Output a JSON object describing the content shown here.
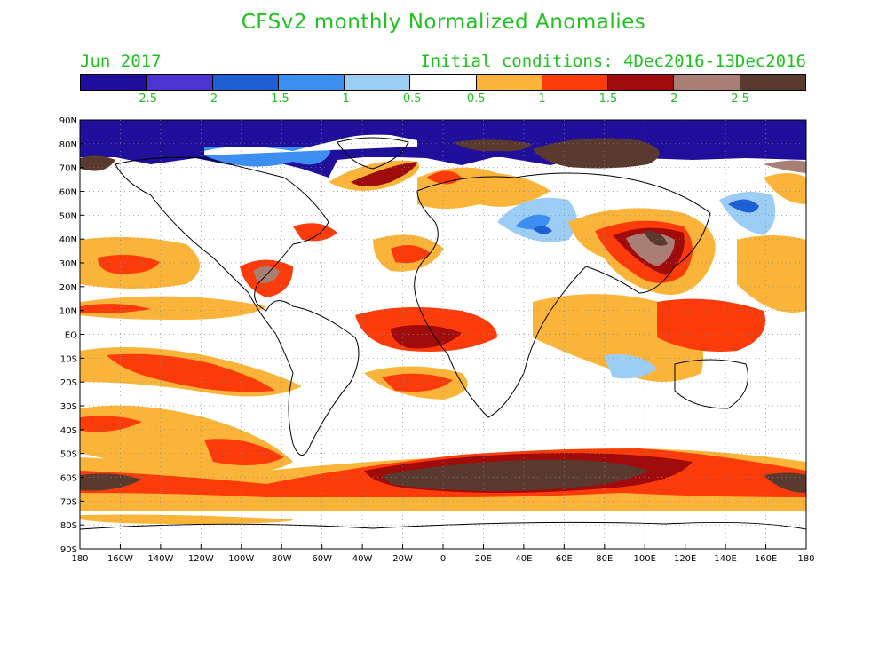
{
  "title": "CFSv2 monthly Normalized Anomalies",
  "subtitle_left": "Jun 2017",
  "subtitle_right": "Initial conditions: 4Dec2016-13Dec2016",
  "colorbar": {
    "colors": [
      "#1f0f9a",
      "#4b34d2",
      "#1e5fd6",
      "#3c8ff0",
      "#9ccdf5",
      "#ffffff",
      "#fbb43a",
      "#fb3c0a",
      "#a00c0c",
      "#a97e74",
      "#5a3a2e"
    ],
    "labels": [
      "-2.5",
      "-2",
      "-1.5",
      "-1",
      "-0.5",
      "0.5",
      "1",
      "1.5",
      "2",
      "2.5"
    ]
  },
  "map": {
    "lat_labels": [
      "90N",
      "80N",
      "70N",
      "60N",
      "50N",
      "40N",
      "30N",
      "20N",
      "10N",
      "EQ",
      "10S",
      "20S",
      "30S",
      "40S",
      "50S",
      "60S",
      "70S",
      "80S",
      "90S"
    ],
    "lon_labels": [
      "180",
      "160W",
      "140W",
      "120W",
      "100W",
      "80W",
      "60W",
      "40W",
      "20W",
      "0",
      "20E",
      "40E",
      "60E",
      "80E",
      "100E",
      "120E",
      "140E",
      "160E",
      "180"
    ]
  }
}
